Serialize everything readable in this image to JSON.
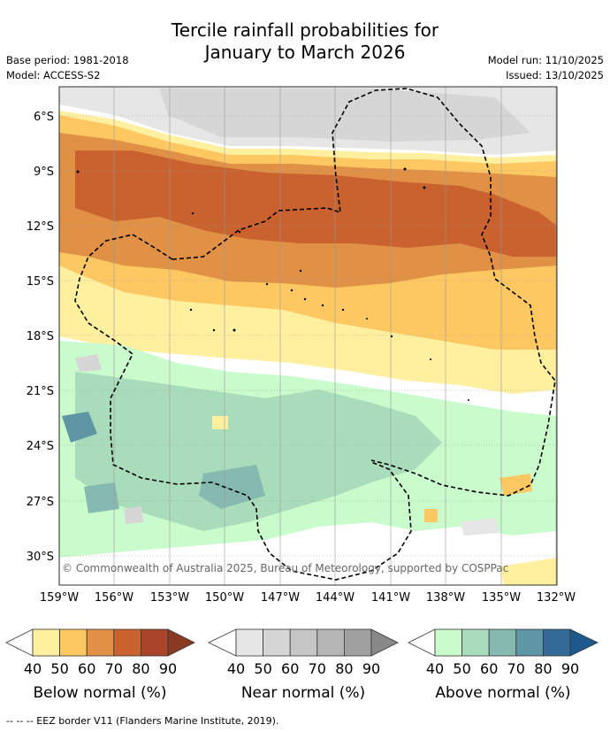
{
  "title_line1": "Tercile rainfall probabilities for",
  "title_line2": "January to March 2026",
  "base_period": "Base period: 1981-2018",
  "model": "Model: ACCESS-S2",
  "model_run": "Model run: 11/10/2025",
  "issued": "Issued: 13/10/2025",
  "copyright": "© Commonwealth of Australia 2025, Bureau of Meteorology, supported by COSPPac",
  "lat_labels": [
    "6°S",
    "9°S",
    "12°S",
    "15°S",
    "18°S",
    "21°S",
    "24°S",
    "27°S",
    "30°S"
  ],
  "lon_labels": [
    "159°W",
    "156°W",
    "153°W",
    "150°W",
    "147°W",
    "144°W",
    "141°W",
    "138°W",
    "135°W",
    "132°W"
  ],
  "legend": {
    "ticks": [
      "40",
      "50",
      "60",
      "70",
      "80",
      "90"
    ],
    "below": {
      "label": "Below normal (%)",
      "colors": [
        "#fff0a0",
        "#fdc862",
        "#e09145",
        "#c9622f",
        "#a8452a"
      ]
    },
    "near": {
      "label": "Near normal (%)",
      "colors": [
        "#e6e6e6",
        "#d6d6d6",
        "#c6c6c6",
        "#b5b5b5",
        "#a0a0a0"
      ]
    },
    "above": {
      "label": "Above normal (%)",
      "colors": [
        "#c9fbcc",
        "#a9dcba",
        "#86bab0",
        "#5f96a6",
        "#336a98"
      ]
    }
  },
  "footer": "--  --  -- EEZ border V11 (Flanders Marine Institute, 2019)."
}
